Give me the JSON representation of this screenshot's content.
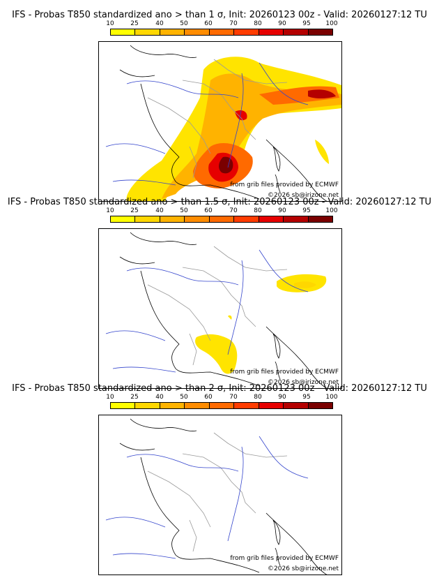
{
  "scale": {
    "ticks": [
      "10",
      "25",
      "40",
      "50",
      "60",
      "70",
      "80",
      "90",
      "95",
      "100"
    ],
    "colors": [
      "#ffff00",
      "#ffd700",
      "#ffb300",
      "#ff8c00",
      "#ff6a00",
      "#ff3c00",
      "#e60000",
      "#b40000",
      "#7a0000"
    ]
  },
  "credits": {
    "source": "from grib files provided by ECMWF",
    "copyright": "©2026 sb@irizone.net"
  },
  "panels": [
    {
      "title": "IFS - Probas T850  standardized ano > than 1 σ, Init: 20260123 00z - Valid: 20260127:12 TU"
    },
    {
      "title": "IFS - Probas T850  standardized ano > than 1.5 σ, Init: 20260123 00z - Valid: 20260127:12 TU"
    },
    {
      "title": "IFS - Probas T850  standardized ano > than 2 σ, Init: 20260123 00z - Valid: 20260127:12 TU"
    }
  ]
}
